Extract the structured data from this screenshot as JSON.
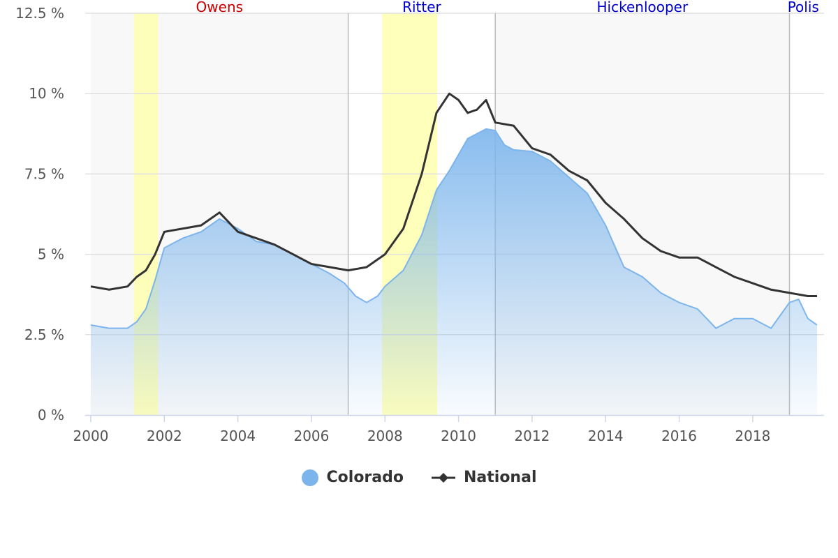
{
  "chart_data": {
    "type": "area",
    "title": "",
    "xlabel": "",
    "ylabel": "",
    "x_range": [
      2000,
      2019.75
    ],
    "ylim": [
      0,
      12.5
    ],
    "y_ticks": [
      {
        "value": 0,
        "label": "0 %"
      },
      {
        "value": 2.5,
        "label": "2.5 %"
      },
      {
        "value": 5,
        "label": "5 %"
      },
      {
        "value": 7.5,
        "label": "7.5 %"
      },
      {
        "value": 10,
        "label": "10 %"
      },
      {
        "value": 12.5,
        "label": "12.5 %"
      }
    ],
    "x_ticks": [
      {
        "value": 2000,
        "label": "2000"
      },
      {
        "value": 2002,
        "label": "2002"
      },
      {
        "value": 2004,
        "label": "2004"
      },
      {
        "value": 2006,
        "label": "2006"
      },
      {
        "value": 2008,
        "label": "2008"
      },
      {
        "value": 2010,
        "label": "2010"
      },
      {
        "value": 2012,
        "label": "2012"
      },
      {
        "value": 2014,
        "label": "2014"
      },
      {
        "value": 2016,
        "label": "2016"
      },
      {
        "value": 2018,
        "label": "2018"
      }
    ],
    "grid": true,
    "legend_position": "bottom-center",
    "governor_terms": [
      {
        "name": "Owens",
        "start": 2000,
        "end": 2007,
        "color": "#cc0000",
        "shaded": true
      },
      {
        "name": "Ritter",
        "start": 2007,
        "end": 2011,
        "color": "#0000cc",
        "shaded": false
      },
      {
        "name": "Hickenlooper",
        "start": 2011,
        "end": 2019,
        "color": "#0000cc",
        "shaded": true
      },
      {
        "name": "Polis",
        "start": 2019,
        "end": 2019.75,
        "color": "#0000cc",
        "shaded": false
      }
    ],
    "recessions": [
      {
        "start": 2001.17,
        "end": 2001.83
      },
      {
        "start": 2007.92,
        "end": 2009.42
      }
    ],
    "series": [
      {
        "name": "Colorado",
        "type": "area",
        "color": "#7cb5ec",
        "points": [
          [
            2000.0,
            2.8
          ],
          [
            2000.5,
            2.7
          ],
          [
            2001.0,
            2.7
          ],
          [
            2001.25,
            2.9
          ],
          [
            2001.5,
            3.3
          ],
          [
            2001.75,
            4.2
          ],
          [
            2002.0,
            5.2
          ],
          [
            2002.5,
            5.5
          ],
          [
            2003.0,
            5.7
          ],
          [
            2003.5,
            6.1
          ],
          [
            2004.0,
            5.8
          ],
          [
            2004.5,
            5.4
          ],
          [
            2005.0,
            5.3
          ],
          [
            2005.5,
            5.0
          ],
          [
            2006.0,
            4.7
          ],
          [
            2006.5,
            4.4
          ],
          [
            2006.9,
            4.1
          ],
          [
            2007.2,
            3.7
          ],
          [
            2007.5,
            3.5
          ],
          [
            2007.8,
            3.7
          ],
          [
            2008.0,
            4.0
          ],
          [
            2008.5,
            4.5
          ],
          [
            2009.0,
            5.6
          ],
          [
            2009.4,
            7.0
          ],
          [
            2009.75,
            7.6
          ],
          [
            2010.0,
            8.1
          ],
          [
            2010.25,
            8.6
          ],
          [
            2010.5,
            8.75
          ],
          [
            2010.75,
            8.9
          ],
          [
            2011.0,
            8.85
          ],
          [
            2011.25,
            8.4
          ],
          [
            2011.5,
            8.25
          ],
          [
            2012.0,
            8.2
          ],
          [
            2012.5,
            7.9
          ],
          [
            2013.0,
            7.4
          ],
          [
            2013.5,
            6.9
          ],
          [
            2014.0,
            5.9
          ],
          [
            2014.5,
            4.6
          ],
          [
            2015.0,
            4.3
          ],
          [
            2015.5,
            3.8
          ],
          [
            2016.0,
            3.5
          ],
          [
            2016.5,
            3.3
          ],
          [
            2017.0,
            2.7
          ],
          [
            2017.5,
            3.0
          ],
          [
            2018.0,
            3.0
          ],
          [
            2018.5,
            2.7
          ],
          [
            2019.0,
            3.5
          ],
          [
            2019.25,
            3.6
          ],
          [
            2019.5,
            3.0
          ],
          [
            2019.75,
            2.8
          ]
        ]
      },
      {
        "name": "National",
        "type": "line",
        "color": "#333333",
        "points": [
          [
            2000.0,
            4.0
          ],
          [
            2000.5,
            3.9
          ],
          [
            2001.0,
            4.0
          ],
          [
            2001.25,
            4.3
          ],
          [
            2001.5,
            4.5
          ],
          [
            2001.75,
            5.0
          ],
          [
            2002.0,
            5.7
          ],
          [
            2002.5,
            5.8
          ],
          [
            2003.0,
            5.9
          ],
          [
            2003.5,
            6.3
          ],
          [
            2004.0,
            5.7
          ],
          [
            2004.5,
            5.5
          ],
          [
            2005.0,
            5.3
          ],
          [
            2005.5,
            5.0
          ],
          [
            2006.0,
            4.7
          ],
          [
            2006.5,
            4.6
          ],
          [
            2007.0,
            4.5
          ],
          [
            2007.5,
            4.6
          ],
          [
            2008.0,
            5.0
          ],
          [
            2008.5,
            5.8
          ],
          [
            2009.0,
            7.5
          ],
          [
            2009.4,
            9.4
          ],
          [
            2009.75,
            10.0
          ],
          [
            2010.0,
            9.8
          ],
          [
            2010.25,
            9.4
          ],
          [
            2010.5,
            9.5
          ],
          [
            2010.75,
            9.8
          ],
          [
            2011.0,
            9.1
          ],
          [
            2011.5,
            9.0
          ],
          [
            2012.0,
            8.3
          ],
          [
            2012.5,
            8.1
          ],
          [
            2013.0,
            7.6
          ],
          [
            2013.5,
            7.3
          ],
          [
            2014.0,
            6.6
          ],
          [
            2014.5,
            6.1
          ],
          [
            2015.0,
            5.5
          ],
          [
            2015.5,
            5.1
          ],
          [
            2016.0,
            4.9
          ],
          [
            2016.5,
            4.9
          ],
          [
            2017.0,
            4.6
          ],
          [
            2017.5,
            4.3
          ],
          [
            2018.0,
            4.1
          ],
          [
            2018.5,
            3.9
          ],
          [
            2019.0,
            3.8
          ],
          [
            2019.5,
            3.7
          ],
          [
            2019.75,
            3.7
          ]
        ]
      }
    ]
  },
  "legend": {
    "colorado": {
      "label": "Colorado",
      "color": "#7cb5ec"
    },
    "national": {
      "label": "National",
      "color": "#333333"
    }
  }
}
